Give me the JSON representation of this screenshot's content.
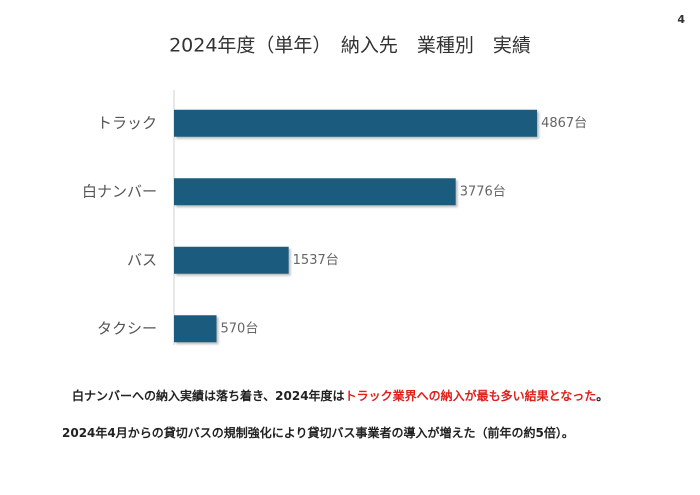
{
  "page_number": "4",
  "chart_data": {
    "type": "bar",
    "orientation": "horizontal",
    "title": "2024年度（単年）　納入先　業種別　実績",
    "categories": [
      "トラック",
      "白ナンバー",
      "バス",
      "タクシー"
    ],
    "values": [
      4867,
      3776,
      1537,
      570
    ],
    "value_labels": [
      "4867台",
      "3776台",
      "1537台",
      "570台"
    ],
    "color": "#1b5c7e",
    "xlim": [
      0,
      5000
    ]
  },
  "notes": [
    [
      {
        "text": "白ナンバーへの納入実績は落ち着き、2024年度は",
        "color": "#222222"
      },
      {
        "text": "トラック業界への納入が最も多い結果となった",
        "color": "#e0201b"
      },
      {
        "text": "。",
        "color": "#222222"
      }
    ],
    [
      {
        "text": "2024年4月からの貸切バスの規制強化により貸切バス事業者の導入が増えた（前年の約5倍）。",
        "color": "#222222"
      }
    ]
  ]
}
